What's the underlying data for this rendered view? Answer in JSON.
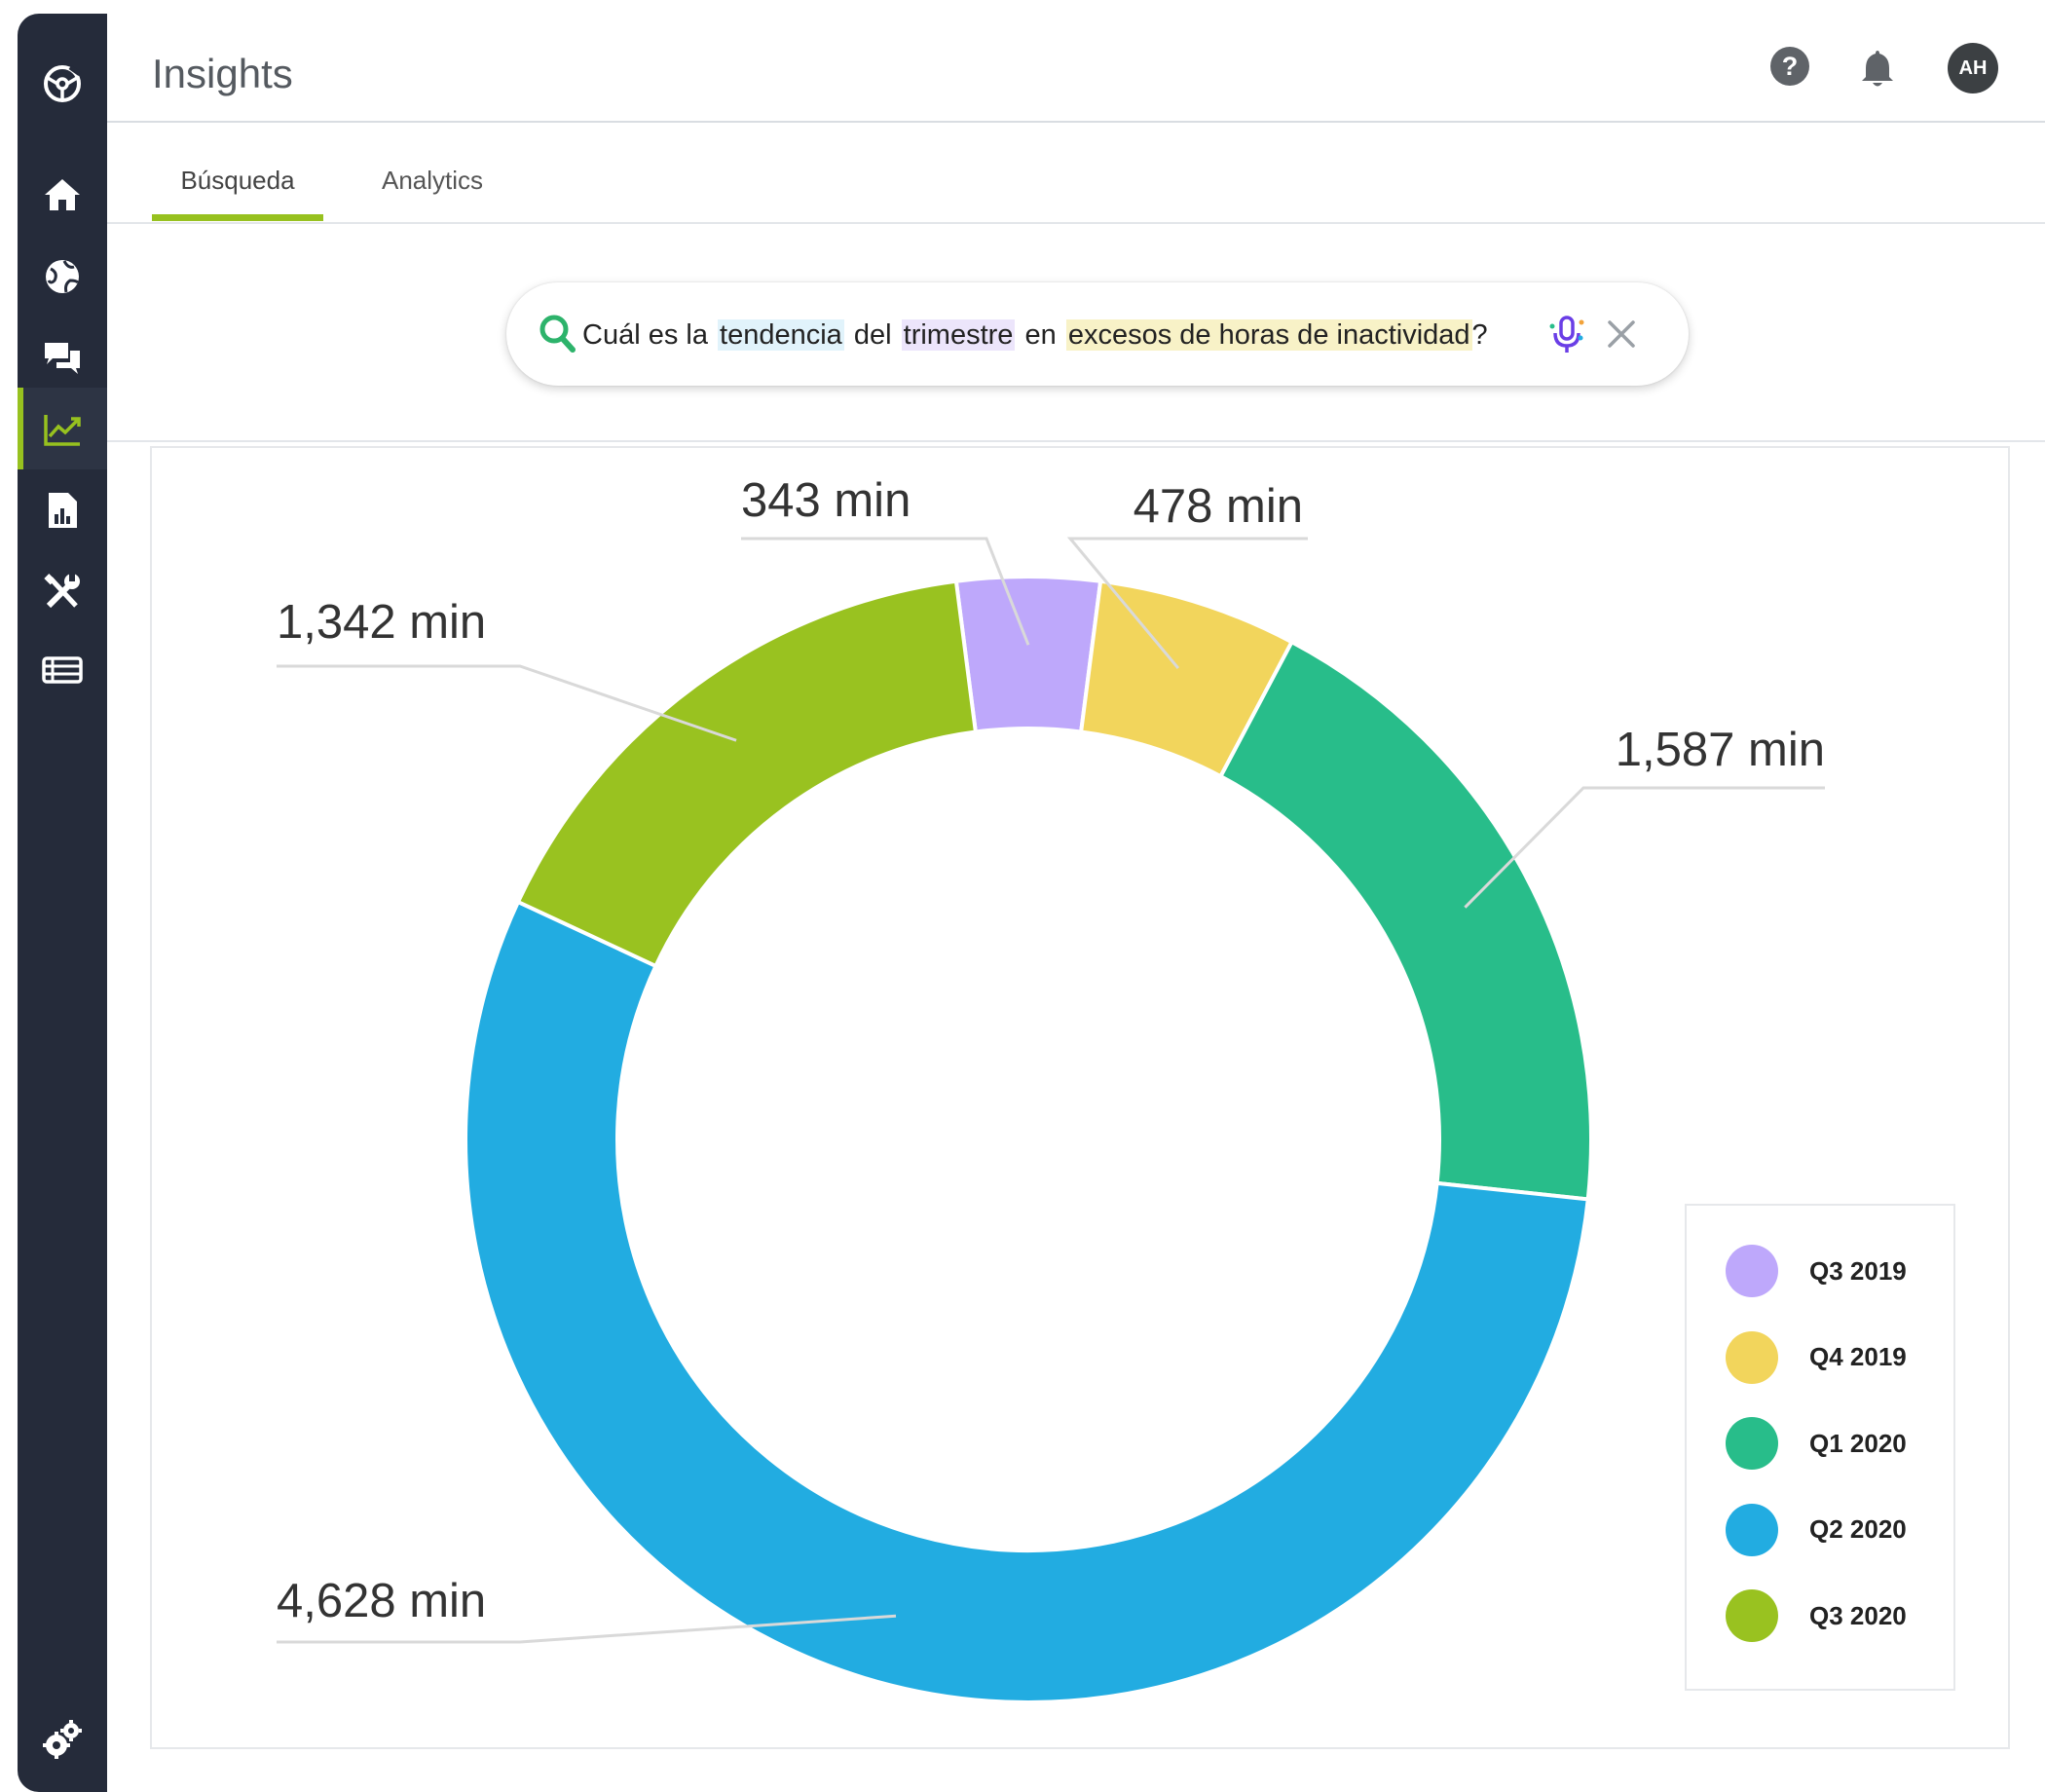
{
  "app": {
    "title": "Insights"
  },
  "header": {
    "help_glyph": "?",
    "avatar_initials": "AH"
  },
  "tabs": [
    {
      "label": "Búsqueda",
      "active": true
    },
    {
      "label": "Analytics",
      "active": false
    }
  ],
  "search": {
    "parts": [
      {
        "text": "Cuál es la",
        "highlight": "none"
      },
      {
        "text": "tendencia",
        "highlight": "blue"
      },
      {
        "text": "del",
        "highlight": "none"
      },
      {
        "text": "trimestre",
        "highlight": "purple"
      },
      {
        "text": "en",
        "highlight": "none"
      },
      {
        "text": "excesos de horas de inactividad",
        "highlight": "yellow"
      },
      {
        "text": "?",
        "highlight": "none"
      }
    ]
  },
  "sidebar": {
    "items": [
      {
        "icon": "logo-icon"
      },
      {
        "icon": "home-icon"
      },
      {
        "icon": "globe-icon"
      },
      {
        "icon": "chat-icon"
      },
      {
        "icon": "trend-chart-icon",
        "active": true
      },
      {
        "icon": "report-icon"
      },
      {
        "icon": "tools-icon"
      },
      {
        "icon": "list-icon"
      },
      {
        "icon": "settings-icon"
      }
    ]
  },
  "chart_data": {
    "type": "pie",
    "donut": true,
    "unit": "min",
    "categories": [
      "Q3 2019",
      "Q4 2019",
      "Q1 2020",
      "Q2 2020",
      "Q3 2020"
    ],
    "values": [
      343,
      478,
      1587,
      4628,
      1342
    ],
    "labels": [
      "343 min",
      "478 min",
      "1,587 min",
      "4,628 min",
      "1,342 min"
    ],
    "colors": [
      "#bea8fb",
      "#f2d55c",
      "#28bd8a",
      "#22ace1",
      "#99c220"
    ],
    "legend_position": "bottom-right"
  }
}
